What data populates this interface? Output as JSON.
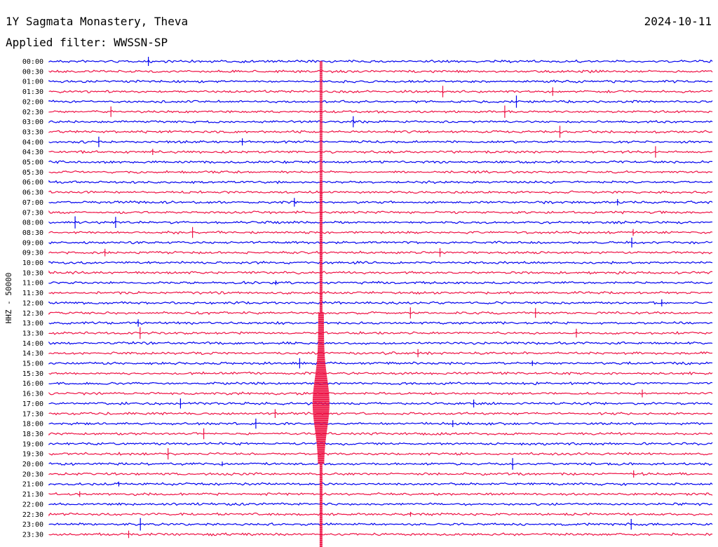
{
  "header": {
    "station_title": "1Y Sagmata Monastery, Theva",
    "date": "2024-10-11",
    "filter_label": "Applied filter: WWSSN-SP"
  },
  "chart_data": {
    "type": "line",
    "ylabel": "HHZ - 50000",
    "colors": {
      "even": "#0000ee",
      "odd": "#ee1144"
    },
    "rows": [
      "00:00",
      "00:30",
      "01:00",
      "01:30",
      "02:00",
      "02:30",
      "03:00",
      "03:30",
      "04:00",
      "04:30",
      "05:00",
      "05:30",
      "06:00",
      "06:30",
      "07:00",
      "07:30",
      "08:00",
      "08:30",
      "09:00",
      "09:30",
      "10:00",
      "10:30",
      "11:00",
      "11:30",
      "12:00",
      "12:30",
      "13:00",
      "13:30",
      "14:00",
      "14:30",
      "15:00",
      "15:30",
      "16:00",
      "16:30",
      "17:00",
      "17:30",
      "18:00",
      "18:30",
      "19:00",
      "19:30",
      "20:00",
      "20:30",
      "21:00",
      "21:30",
      "22:00",
      "22:30",
      "23:00",
      "23:30"
    ],
    "x_range_minutes": [
      0,
      30
    ],
    "main_event": {
      "minute": 12.3,
      "start_row": 1,
      "end_row": 47,
      "peak_rows": [
        33,
        34,
        35
      ]
    }
  }
}
